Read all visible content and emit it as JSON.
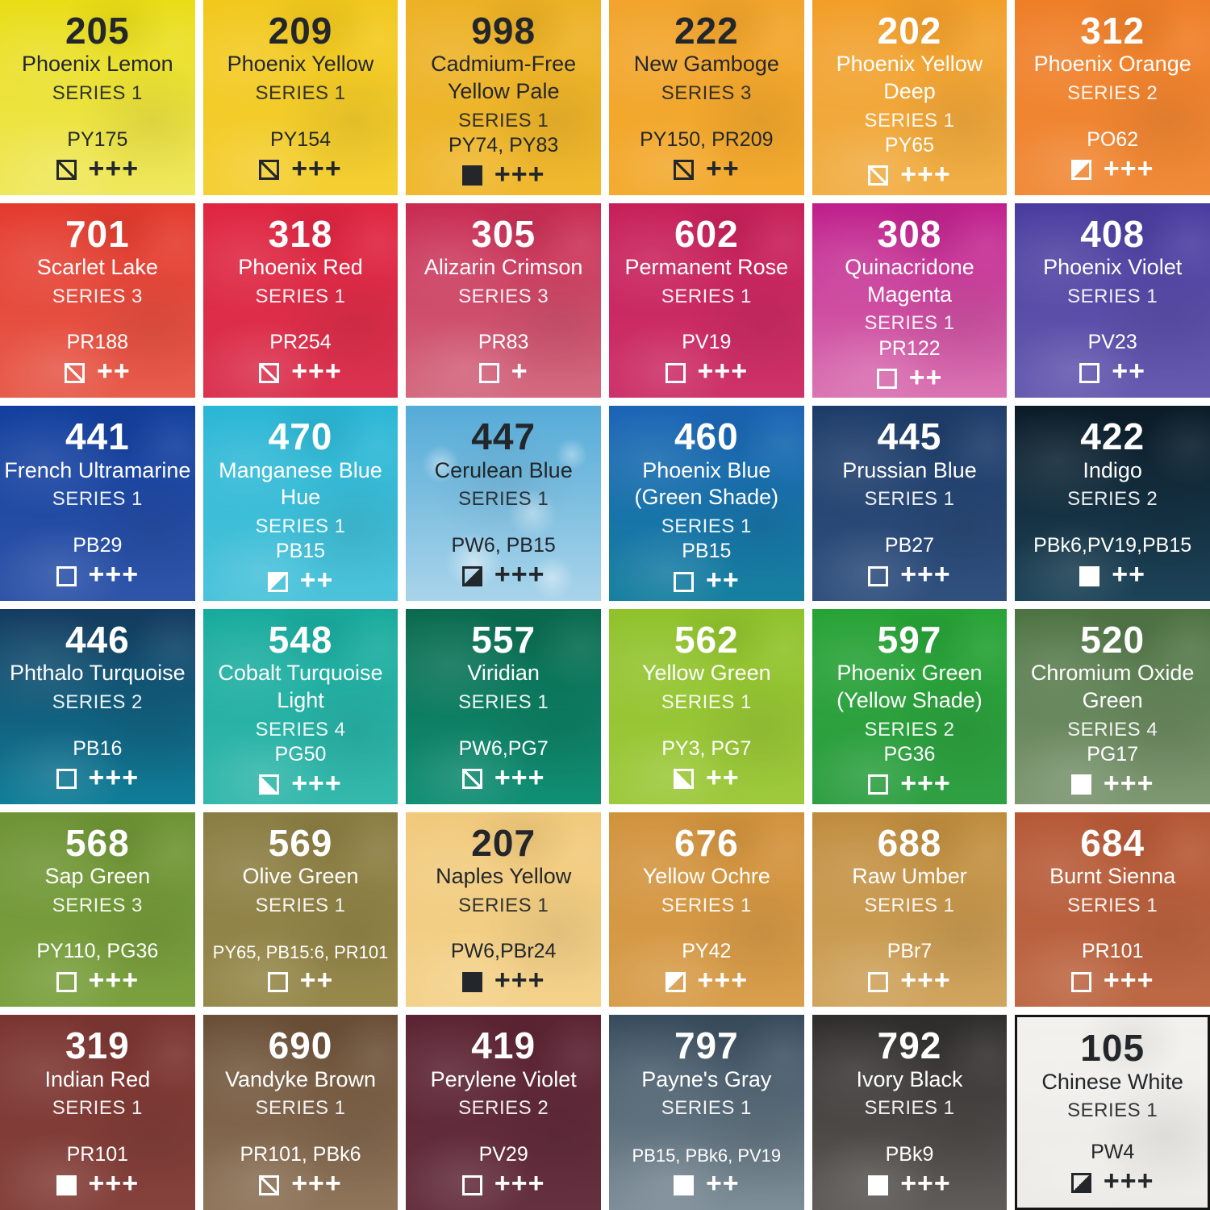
{
  "chart_data": {
    "type": "table",
    "columns": [
      "number",
      "name",
      "series",
      "pigments",
      "opacity",
      "lightfastness"
    ],
    "grid": {
      "rows": 6,
      "cols": 6
    },
    "legend": {
      "opacity_values": [
        "transparent",
        "semi-transparent",
        "semi-opaque-tl",
        "semi-opaque-bl",
        "semi-opaque-br",
        "opaque"
      ],
      "gap_color": "#ffffff"
    },
    "swatches": [
      {
        "number": "205",
        "name": "Phoenix Lemon",
        "series": "SERIES 1",
        "pigments": "PY175",
        "opacity": "semi-transparent",
        "rating": "+++",
        "text": "dark",
        "colors": {
          "top": "#e9dd15",
          "bottom": "#efe85e"
        }
      },
      {
        "number": "209",
        "name": "Phoenix Yellow",
        "series": "SERIES 1",
        "pigments": "PY154",
        "opacity": "semi-transparent",
        "rating": "+++",
        "text": "dark",
        "colors": {
          "top": "#f2c81d",
          "bottom": "#f4cf33"
        }
      },
      {
        "number": "998",
        "name": "Cadmium-Free Yellow Pale",
        "series": "SERIES 1",
        "pigments": "PY74, PY83",
        "opacity": "opaque",
        "rating": "+++",
        "text": "dark",
        "colors": {
          "top": "#edb125",
          "bottom": "#efb82e"
        }
      },
      {
        "number": "222",
        "name": "New Gamboge",
        "series": "SERIES 3",
        "pigments": "PY150, PR209",
        "opacity": "semi-transparent",
        "rating": "++",
        "text": "dark",
        "colors": {
          "top": "#f2a42c",
          "bottom": "#f3aa2e"
        }
      },
      {
        "number": "202",
        "name": "Phoenix Yellow Deep",
        "series": "SERIES 1",
        "pigments": "PY65",
        "opacity": "semi-transparent",
        "rating": "+++",
        "text": "light",
        "colors": {
          "top": "#f29e28",
          "bottom": "#f1af47"
        }
      },
      {
        "number": "312",
        "name": "Phoenix Orange",
        "series": "SERIES 2",
        "pigments": "PO62",
        "opacity": "semi-opaque-tl",
        "rating": "+++",
        "text": "light",
        "colors": {
          "top": "#ef7e27",
          "bottom": "#f08a38"
        }
      },
      {
        "number": "701",
        "name": "Scarlet Lake",
        "series": "SERIES 3",
        "pigments": "PR188",
        "opacity": "semi-transparent",
        "rating": "++",
        "text": "light",
        "colors": {
          "top": "#e43a2d",
          "bottom": "#e75c4c"
        }
      },
      {
        "number": "318",
        "name": "Phoenix Red",
        "series": "SERIES 1",
        "pigments": "PR254",
        "opacity": "semi-transparent",
        "rating": "+++",
        "text": "light",
        "colors": {
          "top": "#e02540",
          "bottom": "#da3350"
        }
      },
      {
        "number": "305",
        "name": "Alizarin Crimson",
        "series": "SERIES 3",
        "pigments": "PR83",
        "opacity": "transparent",
        "rating": "+",
        "text": "light",
        "colors": {
          "top": "#c92a52",
          "bottom": "#d36a80"
        }
      },
      {
        "number": "602",
        "name": "Permanent Rose",
        "series": "SERIES 1",
        "pigments": "PV19",
        "opacity": "transparent",
        "rating": "+++",
        "text": "light",
        "colors": {
          "top": "#c72059",
          "bottom": "#cd3268"
        }
      },
      {
        "number": "308",
        "name": "Quinacridone Magenta",
        "series": "SERIES 1",
        "pigments": "PR122",
        "opacity": "transparent",
        "rating": "++",
        "text": "light",
        "colors": {
          "top": "#bf1e8c",
          "bottom": "#da74b2"
        }
      },
      {
        "number": "408",
        "name": "Phoenix Violet",
        "series": "SERIES 1",
        "pigments": "PV23",
        "opacity": "transparent",
        "rating": "++",
        "text": "light",
        "colors": {
          "top": "#4a3c9f",
          "bottom": "#665bb0"
        }
      },
      {
        "number": "441",
        "name": "French Ultramarine",
        "series": "SERIES 1",
        "pigments": "PB29",
        "opacity": "transparent",
        "rating": "+++",
        "text": "light",
        "colors": {
          "top": "#123f9e",
          "bottom": "#2f55a9"
        }
      },
      {
        "number": "470",
        "name": "Manganese Blue Hue",
        "series": "SERIES 1",
        "pigments": "PB15",
        "opacity": "semi-opaque-tl",
        "rating": "++",
        "text": "light",
        "colors": {
          "top": "#29b6d5",
          "bottom": "#4cc3da"
        }
      },
      {
        "number": "447",
        "name": "Cerulean Blue",
        "series": "SERIES 1",
        "pigments": "PW6, PB15",
        "opacity": "semi-opaque-br",
        "rating": "+++",
        "text": "dark",
        "colors": {
          "top": "#55abd8",
          "bottom": "#a9d4ea"
        },
        "mottled": true
      },
      {
        "number": "460",
        "name": "Phoenix Blue (Green Shade)",
        "series": "SERIES 1",
        "pigments": "PB15",
        "opacity": "transparent",
        "rating": "++",
        "text": "light",
        "colors": {
          "top": "#1b64b6",
          "bottom": "#16809f"
        }
      },
      {
        "number": "445",
        "name": "Prussian Blue",
        "series": "SERIES 1",
        "pigments": "PB27",
        "opacity": "transparent",
        "rating": "+++",
        "text": "light",
        "colors": {
          "top": "#1d3c69",
          "bottom": "#30507e"
        }
      },
      {
        "number": "422",
        "name": "Indigo",
        "series": "SERIES 2",
        "pigments": "PBk6,PV19,PB15",
        "opacity": "opaque",
        "rating": "++",
        "text": "light",
        "colors": {
          "top": "#0b1b28",
          "bottom": "#1d4459"
        }
      },
      {
        "number": "446",
        "name": "Phthalo Turquoise",
        "series": "SERIES 2",
        "pigments": "PB16",
        "opacity": "transparent",
        "rating": "+++",
        "text": "light",
        "colors": {
          "top": "#143c60",
          "bottom": "#0f7e98"
        }
      },
      {
        "number": "548",
        "name": "Cobalt Turquoise Light",
        "series": "SERIES 4",
        "pigments": "PG50",
        "opacity": "semi-opaque-bl",
        "rating": "+++",
        "text": "light",
        "colors": {
          "top": "#17ab9d",
          "bottom": "#35b8ac"
        }
      },
      {
        "number": "557",
        "name": "Viridian",
        "series": "SERIES 1",
        "pigments": "PW6,PG7",
        "opacity": "semi-transparent",
        "rating": "+++",
        "text": "light",
        "colors": {
          "top": "#0a6a4e",
          "bottom": "#108f74"
        }
      },
      {
        "number": "562",
        "name": "Yellow Green",
        "series": "SERIES 1",
        "pigments": "PY3, PG7",
        "opacity": "semi-opaque-bl",
        "rating": "++",
        "text": "light",
        "colors": {
          "top": "#8fc22b",
          "bottom": "#9dc93c"
        }
      },
      {
        "number": "597",
        "name": "Phoenix Green (Yellow Shade)",
        "series": "SERIES 2",
        "pigments": "PG36",
        "opacity": "transparent",
        "rating": "+++",
        "text": "light",
        "colors": {
          "top": "#27a335",
          "bottom": "#2f9f43"
        }
      },
      {
        "number": "520",
        "name": "Chromium Oxide Green",
        "series": "SERIES 4",
        "pigments": "PG17",
        "opacity": "opaque",
        "rating": "+++",
        "text": "light",
        "colors": {
          "top": "#4d7342",
          "bottom": "#7f9873"
        }
      },
      {
        "number": "568",
        "name": "Sap Green",
        "series": "SERIES 3",
        "pigments": "PY110, PG36",
        "opacity": "transparent",
        "rating": "+++",
        "text": "light",
        "colors": {
          "top": "#6d9334",
          "bottom": "#7ba13f"
        }
      },
      {
        "number": "569",
        "name": "Olive Green",
        "series": "SERIES 1",
        "pigments": "PY65, PB15:6, PR101",
        "opacity": "transparent",
        "rating": "++",
        "text": "light",
        "colors": {
          "top": "#8a7d43",
          "bottom": "#97894b"
        }
      },
      {
        "number": "207",
        "name": "Naples Yellow",
        "series": "SERIES 1",
        "pigments": "PW6,PBr24",
        "opacity": "opaque",
        "rating": "+++",
        "text": "dark",
        "colors": {
          "top": "#f1c97a",
          "bottom": "#f3d28b"
        }
      },
      {
        "number": "676",
        "name": "Yellow Ochre",
        "series": "SERIES 1",
        "pigments": "PY42",
        "opacity": "semi-opaque-tl",
        "rating": "+++",
        "text": "light",
        "colors": {
          "top": "#d1923c",
          "bottom": "#d89e4c"
        }
      },
      {
        "number": "688",
        "name": "Raw Umber",
        "series": "SERIES 1",
        "pigments": "PBr7",
        "opacity": "transparent",
        "rating": "+++",
        "text": "light",
        "colors": {
          "top": "#bf8c3d",
          "bottom": "#d0a55f"
        }
      },
      {
        "number": "684",
        "name": "Burnt Sienna",
        "series": "SERIES 1",
        "pigments": "PR101",
        "opacity": "transparent",
        "rating": "+++",
        "text": "light",
        "colors": {
          "top": "#b65836",
          "bottom": "#bd6945"
        }
      },
      {
        "number": "319",
        "name": "Indian Red",
        "series": "SERIES 1",
        "pigments": "PR101",
        "opacity": "opaque",
        "rating": "+++",
        "text": "light",
        "colors": {
          "top": "#7b3531",
          "bottom": "#85413b"
        }
      },
      {
        "number": "690",
        "name": "Vandyke Brown",
        "series": "SERIES 1",
        "pigments": "PR101, PBk6",
        "opacity": "semi-transparent",
        "rating": "+++",
        "text": "light",
        "colors": {
          "top": "#6a4f36",
          "bottom": "#8f755a"
        }
      },
      {
        "number": "419",
        "name": "Perylene Violet",
        "series": "SERIES 2",
        "pigments": "PV29",
        "opacity": "transparent",
        "rating": "+++",
        "text": "light",
        "colors": {
          "top": "#5c2433",
          "bottom": "#653040"
        }
      },
      {
        "number": "797",
        "name": "Payne's Gray",
        "series": "SERIES 1",
        "pigments": "PB15, PBk6, PV19",
        "opacity": "opaque",
        "rating": "++",
        "text": "light",
        "colors": {
          "top": "#374b5c",
          "bottom": "#7e8e98"
        }
      },
      {
        "number": "792",
        "name": "Ivory Black",
        "series": "SERIES 1",
        "pigments": "PBk9",
        "opacity": "opaque",
        "rating": "+++",
        "text": "light",
        "colors": {
          "top": "#2f2d2c",
          "bottom": "#605c59"
        }
      },
      {
        "number": "105",
        "name": "Chinese White",
        "series": "SERIES 1",
        "pigments": "PW4",
        "opacity": "semi-opaque-br",
        "rating": "+++",
        "text": "dark",
        "colors": {
          "top": "#f2f1ed",
          "bottom": "#edebe7"
        },
        "bordered": true
      }
    ]
  }
}
